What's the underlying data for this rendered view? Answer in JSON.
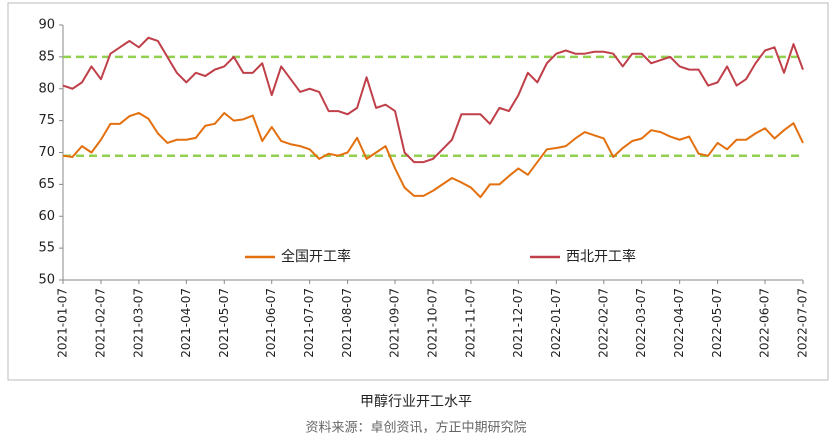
{
  "chart_data": {
    "type": "line",
    "title": "甲醇行业开工水平",
    "source": "资料来源：卓创资讯，方正中期研究院",
    "categories": [
      "2021-01-07",
      null,
      null,
      null,
      "2021-02-07",
      null,
      null,
      null,
      "2021-03-07",
      null,
      null,
      null,
      null,
      "2021-04-07",
      null,
      null,
      null,
      "2021-05-07",
      null,
      null,
      null,
      null,
      "2021-06-07",
      null,
      null,
      null,
      "2021-07-07",
      null,
      null,
      null,
      "2021-08-07",
      null,
      null,
      null,
      null,
      "2021-09-07",
      null,
      null,
      null,
      "2021-10-07",
      null,
      null,
      null,
      "2021-11-07",
      null,
      null,
      null,
      null,
      "2021-12-07",
      null,
      null,
      null,
      "2022-01-07",
      null,
      null,
      null,
      null,
      "2022-02-07",
      null,
      null,
      null,
      "2022-03-07",
      null,
      null,
      null,
      "2022-04-07",
      null,
      null,
      null,
      "2022-05-07",
      null,
      null,
      null,
      null,
      "2022-06-07",
      null,
      null,
      null,
      "2022-07-07"
    ],
    "series": [
      {
        "name": "全国开工率",
        "color": "#e3700e",
        "values": [
          69.5,
          69.3,
          71,
          70,
          72,
          74.5,
          74.5,
          75.7,
          76.2,
          75.3,
          73,
          71.5,
          72,
          72,
          72.3,
          74.2,
          74.5,
          76.2,
          75,
          75.2,
          75.8,
          71.8,
          74,
          71.8,
          71.3,
          71,
          70.5,
          69,
          69.8,
          69.5,
          70,
          72.3,
          69,
          70,
          71,
          67.5,
          64.5,
          63.2,
          63.2,
          64,
          65,
          66,
          65.3,
          64.5,
          63,
          65,
          65,
          66.3,
          67.5,
          66.5,
          68.5,
          70.5,
          70.7,
          71,
          72.2,
          73.2,
          72.7,
          72.2,
          69.3,
          70.7,
          71.8,
          72.2,
          73.5,
          73.2,
          72.5,
          72,
          72.5,
          69.8,
          69.5,
          71.5,
          70.5,
          72,
          72,
          73,
          73.8,
          72.2,
          73.5,
          74.6,
          71.5
        ]
      },
      {
        "name": "西北开工率",
        "color": "#c0404a",
        "values": [
          80.5,
          80,
          81,
          83.5,
          81.5,
          85.5,
          86.5,
          87.5,
          86.5,
          88,
          87.5,
          85,
          82.5,
          81,
          82.5,
          82,
          83,
          83.5,
          85,
          82.5,
          82.5,
          84,
          79,
          83.5,
          81.5,
          79.5,
          80,
          79.5,
          76.5,
          76.5,
          76,
          77,
          81.8,
          77,
          77.5,
          76.5,
          70,
          68.5,
          68.5,
          69,
          70.5,
          72,
          76,
          76,
          76,
          74.5,
          77,
          76.5,
          79,
          82.5,
          81,
          84,
          85.5,
          86,
          85.5,
          85.5,
          85.8,
          85.8,
          85.5,
          83.5,
          85.5,
          85.5,
          84,
          84.5,
          85,
          83.5,
          83,
          83,
          80.5,
          81,
          83.5,
          80.5,
          81.5,
          84,
          86,
          86.5,
          82.5,
          87,
          83
        ]
      }
    ],
    "reference_lines": [
      85,
      69.5
    ],
    "reference_color": "#92d050",
    "ylim": [
      50,
      90
    ],
    "yticks": [
      50,
      55,
      60,
      65,
      70,
      75,
      80,
      85,
      90
    ]
  }
}
